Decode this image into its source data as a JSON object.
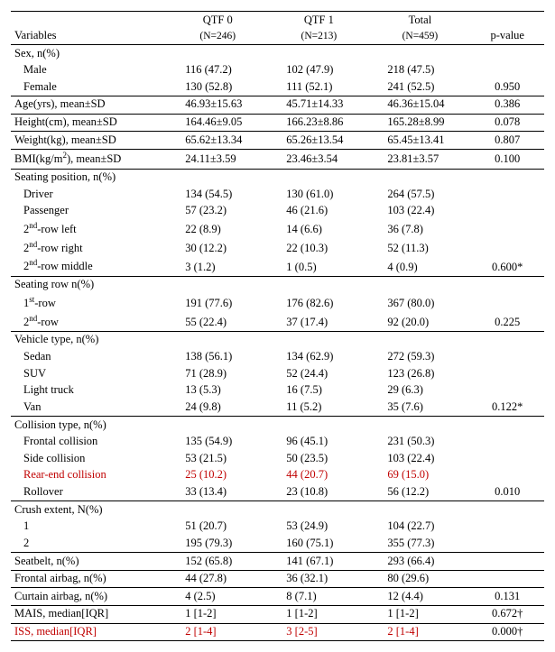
{
  "table": {
    "headers": {
      "variables": "Variables",
      "qtf0": "QTF 0",
      "qtf0_n": "(N=246)",
      "qtf1": "QTF 1",
      "qtf1_n": "(N=213)",
      "total": "Total",
      "total_n": "(N=459)",
      "pvalue": "p-value"
    },
    "sections": [
      {
        "label": "Sex, n(%)",
        "rows": [
          {
            "label": "Male",
            "indent": 1,
            "q0": "116 (47.2)",
            "q1": "102 (47.9)",
            "tot": "218 (47.5)",
            "p": ""
          },
          {
            "label": "Female",
            "indent": 1,
            "q0": "130 (52.8)",
            "q1": "111 (52.1)",
            "tot": "241 (52.5)",
            "p": "0.950",
            "rule": true
          }
        ]
      },
      {
        "label_html": "Age(yrs), mean±SD",
        "single": true,
        "q0": "46.93±15.63",
        "q1": "45.71±14.33",
        "tot": "46.36±15.04",
        "p": "0.386",
        "rule": true
      },
      {
        "label_html": "Height(cm), mean±SD",
        "single": true,
        "q0": "164.46±9.05",
        "q1": "166.23±8.86",
        "tot": "165.28±8.99",
        "p": "0.078",
        "rule": true
      },
      {
        "label_html": "Weight(kg), mean±SD",
        "single": true,
        "q0": "65.62±13.34",
        "q1": "65.26±13.54",
        "tot": "65.45±13.41",
        "p": "0.807",
        "rule": true
      },
      {
        "label_html": "BMI(kg/m<sup>2</sup>), mean±SD",
        "single": true,
        "q0": "24.11±3.59",
        "q1": "23.46±3.54",
        "tot": "23.81±3.57",
        "p": "0.100",
        "rule": true
      },
      {
        "label": "Seating position, n(%)",
        "rows": [
          {
            "label": "Driver",
            "indent": 1,
            "q0": "134 (54.5)",
            "q1": "130 (61.0)",
            "tot": "264 (57.5)",
            "p": ""
          },
          {
            "label": "Passenger",
            "indent": 1,
            "q0": "57 (23.2)",
            "q1": "46 (21.6)",
            "tot": "103 (22.4)",
            "p": ""
          },
          {
            "label_html": "2<sup>nd</sup>-row left",
            "indent": 1,
            "q0": "22 (8.9)",
            "q1": "14 (6.6)",
            "tot": "36 (7.8)",
            "p": ""
          },
          {
            "label_html": "2<sup>nd</sup>-row right",
            "indent": 1,
            "q0": "30 (12.2)",
            "q1": "22 (10.3)",
            "tot": "52 (11.3)",
            "p": ""
          },
          {
            "label_html": "2<sup>nd</sup>-row middle",
            "indent": 1,
            "q0": "3 (1.2)",
            "q1": "1 (0.5)",
            "tot": "4 (0.9)",
            "p": "0.600*",
            "rule": true
          }
        ]
      },
      {
        "label": "Seating row n(%)",
        "rows": [
          {
            "label_html": "1<sup>st</sup>-row",
            "indent": 1,
            "q0": "191 (77.6)",
            "q1": "176 (82.6)",
            "tot": "367 (80.0)",
            "p": ""
          },
          {
            "label_html": "2<sup>nd</sup>-row",
            "indent": 1,
            "q0": "55 (22.4)",
            "q1": "37 (17.4)",
            "tot": "92 (20.0)",
            "p": "0.225",
            "rule": true
          }
        ]
      },
      {
        "label": "Vehicle type, n(%)",
        "rows": [
          {
            "label": "Sedan",
            "indent": 1,
            "q0": "138 (56.1)",
            "q1": "134 (62.9)",
            "tot": "272 (59.3)",
            "p": ""
          },
          {
            "label": "SUV",
            "indent": 1,
            "q0": "71 (28.9)",
            "q1": "52 (24.4)",
            "tot": "123 (26.8)",
            "p": ""
          },
          {
            "label": "Light truck",
            "indent": 1,
            "q0": "13 (5.3)",
            "q1": "16 (7.5)",
            "tot": "29 (6.3)",
            "p": ""
          },
          {
            "label": "Van",
            "indent": 1,
            "q0": "24 (9.8)",
            "q1": "11 (5.2)",
            "tot": "35 (7.6)",
            "p": "0.122*",
            "rule": true
          }
        ]
      },
      {
        "label": "Collision type, n(%)",
        "rows": [
          {
            "label": "Frontal collision",
            "indent": 1,
            "q0": "135 (54.9)",
            "q1": "96 (45.1)",
            "tot": "231 (50.3)",
            "p": ""
          },
          {
            "label": "Side collision",
            "indent": 1,
            "q0": "53 (21.5)",
            "q1": "50 (23.5)",
            "tot": "103 (22.4)",
            "p": ""
          },
          {
            "label": "Rear-end collision",
            "indent": 1,
            "q0": "25 (10.2)",
            "q1": "44 (20.7)",
            "tot": "69 (15.0)",
            "p": "",
            "red": true
          },
          {
            "label": "Rollover",
            "indent": 1,
            "q0": "33 (13.4)",
            "q1": "23 (10.8)",
            "tot": "56 (12.2)",
            "p": "0.010",
            "rule": true
          }
        ]
      },
      {
        "label": "Crush extent, N(%)",
        "rows": [
          {
            "label": "1",
            "indent": 1,
            "q0": "51 (20.7)",
            "q1": "53 (24.9)",
            "tot": "104 (22.7)",
            "p": ""
          },
          {
            "label": "2",
            "indent": 1,
            "q0": "195 (79.3)",
            "q1": "160 (75.1)",
            "tot": "355 (77.3)",
            "p": "",
            "rule": true
          }
        ]
      },
      {
        "label": "Seatbelt, n(%)",
        "single": true,
        "q0": "152 (65.8)",
        "q1": "141 (67.1)",
        "tot": "293 (66.4)",
        "p": "",
        "rule": true
      },
      {
        "label": "Frontal airbag, n(%)",
        "single": true,
        "q0": "44 (27.8)",
        "q1": "36 (32.1)",
        "tot": "80 (29.6)",
        "p": "",
        "rule": true
      },
      {
        "label": "Curtain airbag, n(%)",
        "single": true,
        "q0": "4 (2.5)",
        "q1": "8 (7.1)",
        "tot": "12 (4.4)",
        "p": "0.131",
        "rule": true
      },
      {
        "label": "MAIS, median[IQR]",
        "single": true,
        "q0": "1 [1-2]",
        "q1": "1 [1-2]",
        "tot": "1 [1-2]",
        "p": "0.672†",
        "rule": true
      },
      {
        "label": "ISS, median[IQR]",
        "single": true,
        "q0": "2 [1-4]",
        "q1": "3 [2-5]",
        "tot": "2 [1-4]",
        "p": "0.000†",
        "red": true,
        "rule": true
      }
    ],
    "colors": {
      "red": "#c00000",
      "text": "#000000",
      "border": "#000000"
    },
    "font_size_pt": 12.5
  }
}
